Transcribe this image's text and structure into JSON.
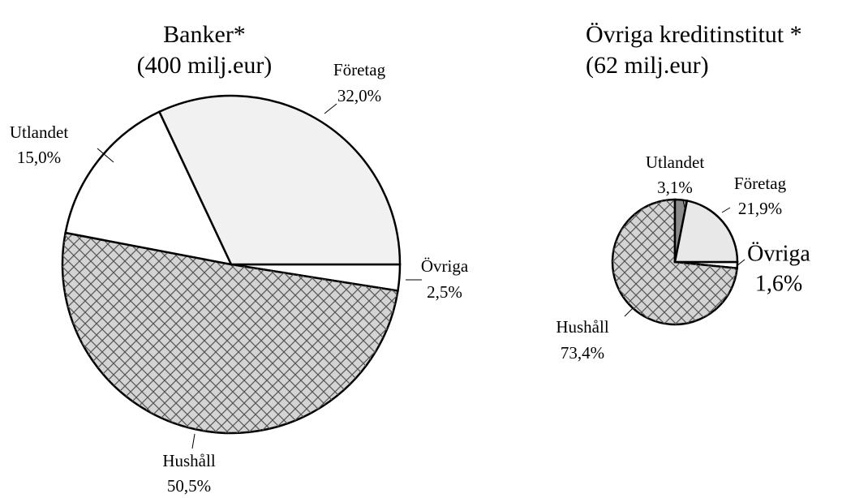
{
  "chart_data": [
    {
      "type": "pie",
      "title": "Banker*",
      "subtitle": "(400 milj.eur)",
      "categories": [
        "Övriga",
        "Hushåll",
        "Utlandet",
        "Företag"
      ],
      "values": [
        2.5,
        50.5,
        15.0,
        32.0
      ],
      "value_labels": [
        "2,5%",
        "50,5%",
        "15,0%",
        "32,0%"
      ],
      "colors": [
        "#ffffff",
        "#d4d4d4",
        "#ffffff",
        "#f1f1f1"
      ]
    },
    {
      "type": "pie",
      "title": "Övriga kreditinstitut *",
      "subtitle": "(62 milj.eur)",
      "categories": [
        "Övriga",
        "Hushåll",
        "Utlandet",
        "Företag"
      ],
      "values": [
        1.6,
        73.4,
        3.1,
        21.9
      ],
      "value_labels": [
        "1,6%",
        "73,4%",
        "3,1%",
        "21,9%"
      ],
      "colors": [
        "#ffffff",
        "#d4d4d4",
        "#8c8c8c",
        "#e8e8e8"
      ]
    }
  ]
}
